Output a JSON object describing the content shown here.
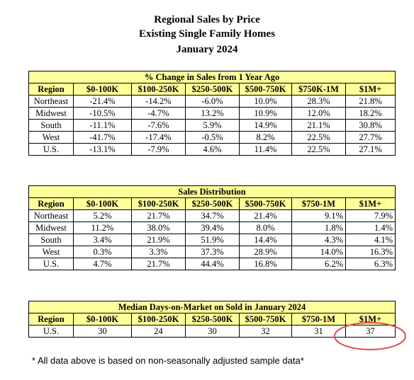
{
  "header": {
    "title": "Regional Sales by Price",
    "subtitle": "Existing Single Family Homes",
    "date": "January 2024"
  },
  "tables": [
    {
      "title": "% Change in Sales from 1 Year Ago",
      "columns": [
        "Region",
        "$0-100K",
        "$100-250K",
        "$250-500K",
        "$500-750K",
        "$750K-1M",
        "$1M+"
      ],
      "rows": [
        [
          "Northeast",
          "-21.4%",
          "-14.2%",
          "-6.0%",
          "10.0%",
          "28.3%",
          "21.8%"
        ],
        [
          "Midwest",
          "-10.5%",
          "-4.7%",
          "13.2%",
          "10.9%",
          "12.0%",
          "18.2%"
        ],
        [
          "South",
          "-11.1%",
          "-7.6%",
          "5.9%",
          "14.9%",
          "21.1%",
          "30.8%"
        ],
        [
          "West",
          "-41.7%",
          "-17.4%",
          "-0.5%",
          "8.2%",
          "22.5%",
          "27.7%"
        ],
        [
          "U.S.",
          "-13.1%",
          "-7.9%",
          "4.6%",
          "11.4%",
          "22.5%",
          "27.1%"
        ]
      ]
    },
    {
      "title": "Sales Distribution",
      "columns": [
        "Region",
        "$0-100K",
        "$100-250K",
        "$250-500K",
        "$500-750K",
        "$750-1M",
        "$1M+"
      ],
      "rows": [
        [
          "Northeast",
          "5.2%",
          "21.7%",
          "34.7%",
          "21.4%",
          "9.1%",
          "7.9%"
        ],
        [
          "Midwest",
          "11.2%",
          "38.0%",
          "39.4%",
          "8.0%",
          "1.8%",
          "1.4%"
        ],
        [
          "South",
          "3.4%",
          "21.9%",
          "51.9%",
          "14.4%",
          "4.3%",
          "4.1%"
        ],
        [
          "West",
          "0.3%",
          "3.3%",
          "37.3%",
          "28.9%",
          "14.0%",
          "16.3%"
        ],
        [
          "U.S.",
          "4.7%",
          "21.7%",
          "44.4%",
          "16.8%",
          "6.2%",
          "6.3%"
        ]
      ]
    },
    {
      "title": "Median Days-on-Market on Sold in January 2024",
      "columns": [
        "Region",
        "$0-100K",
        "$100-250K",
        "$250-500K",
        "$500-750K",
        "$750-1M",
        "$1M+"
      ],
      "rows": [
        [
          "U.S.",
          "30",
          "24",
          "30",
          "32",
          "31",
          "37"
        ]
      ]
    }
  ],
  "footnote": "* All data above is based on non-seasonally adjusted sample data*"
}
